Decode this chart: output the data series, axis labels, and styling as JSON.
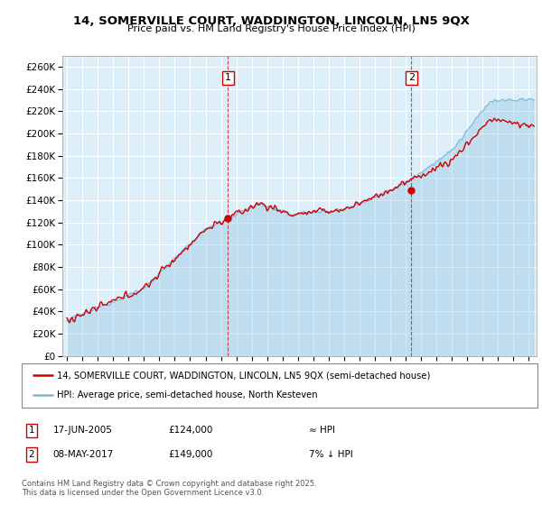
{
  "title1": "14, SOMERVILLE COURT, WADDINGTON, LINCOLN, LN5 9QX",
  "title2": "Price paid vs. HM Land Registry's House Price Index (HPI)",
  "ylabel_ticks": [
    "£0",
    "£20K",
    "£40K",
    "£60K",
    "£80K",
    "£100K",
    "£120K",
    "£140K",
    "£160K",
    "£180K",
    "£200K",
    "£220K",
    "£240K",
    "£260K"
  ],
  "ytick_vals": [
    0,
    20000,
    40000,
    60000,
    80000,
    100000,
    120000,
    140000,
    160000,
    180000,
    200000,
    220000,
    240000,
    260000
  ],
  "ylim": [
    0,
    270000
  ],
  "xlim_start": 1994.7,
  "xlim_end": 2025.5,
  "xticks": [
    1995,
    1996,
    1997,
    1998,
    1999,
    2000,
    2001,
    2002,
    2003,
    2004,
    2005,
    2006,
    2007,
    2008,
    2009,
    2010,
    2011,
    2012,
    2013,
    2014,
    2015,
    2016,
    2017,
    2018,
    2019,
    2020,
    2021,
    2022,
    2023,
    2024,
    2025
  ],
  "sale1_x": 2005.46,
  "sale1_y": 124000,
  "sale1_label": "1",
  "sale2_x": 2017.36,
  "sale2_y": 149000,
  "sale2_label": "2",
  "legend_line1": "14, SOMERVILLE COURT, WADDINGTON, LINCOLN, LN5 9QX (semi-detached house)",
  "legend_line2": "HPI: Average price, semi-detached house, North Kesteven",
  "note1_label": "1",
  "note1_date": "17-JUN-2005",
  "note1_price": "£124,000",
  "note1_vs": "≈ HPI",
  "note2_label": "2",
  "note2_date": "08-MAY-2017",
  "note2_price": "£149,000",
  "note2_vs": "7% ↓ HPI",
  "footer": "Contains HM Land Registry data © Crown copyright and database right 2025.\nThis data is licensed under the Open Government Licence v3.0.",
  "bg_color": "#dceef8",
  "line_color_red": "#cc0000",
  "line_color_blue": "#7ab8d8",
  "grid_color": "#ffffff",
  "dashed_color": "#cc0000",
  "dot_color": "#cc0000"
}
